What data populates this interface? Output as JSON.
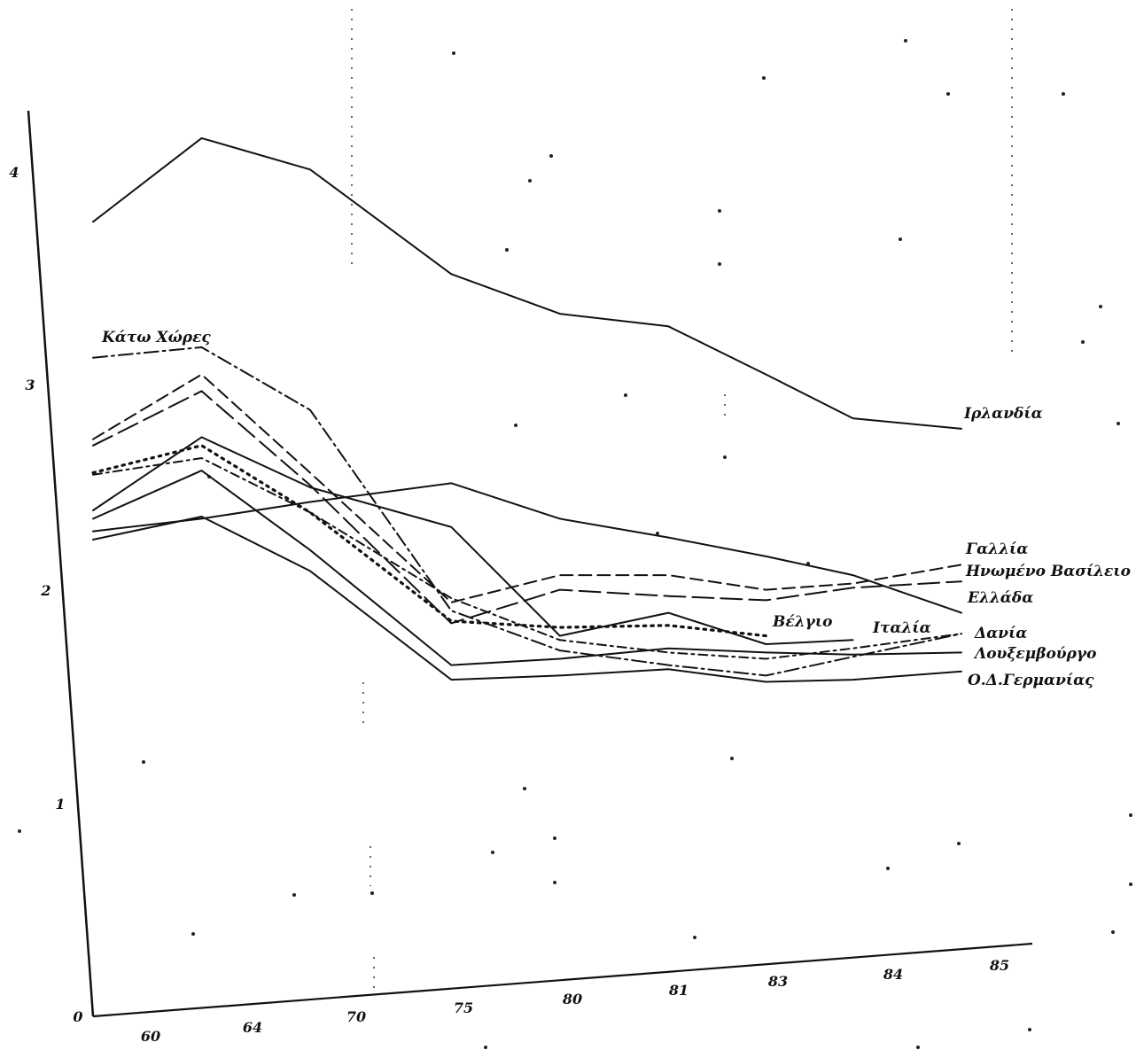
{
  "chart_data": {
    "type": "line",
    "title": "",
    "xlabel": "",
    "ylabel": "",
    "x_tick_labels": [
      "60",
      "64",
      "70",
      "75",
      "80",
      "81",
      "83",
      "84",
      "85"
    ],
    "y_tick_labels": [
      "0",
      "1",
      "2",
      "3",
      "4"
    ],
    "ylim": [
      0,
      4.3
    ],
    "grid": false,
    "series": [
      {
        "name": "Ιρλανδία",
        "style": "solid",
        "points": [
          [
            0,
            3.77
          ],
          [
            1,
            4.17
          ],
          [
            2,
            4.02
          ],
          [
            3.3,
            3.52
          ],
          [
            4.3,
            3.33
          ],
          [
            5.3,
            3.27
          ],
          [
            6.2,
            3.04
          ],
          [
            7,
            2.83
          ],
          [
            8,
            2.78
          ]
        ]
      },
      {
        "name": "Κάτω Χώρες",
        "style": "dashdot",
        "points": [
          [
            0,
            3.12
          ],
          [
            1,
            3.17
          ],
          [
            2,
            2.87
          ],
          [
            3.3,
            1.91
          ],
          [
            4.3,
            1.72
          ],
          [
            5.3,
            1.65
          ],
          [
            6.2,
            1.6
          ],
          [
            7,
            1.69
          ],
          [
            8,
            1.8
          ]
        ]
      },
      {
        "name": "Γαλλία",
        "style": "dashed",
        "points": [
          [
            0,
            2.73
          ],
          [
            1,
            3.04
          ],
          [
            2,
            2.57
          ],
          [
            3.3,
            1.95
          ],
          [
            4.3,
            2.08
          ],
          [
            5.3,
            2.08
          ],
          [
            6.2,
            2.01
          ],
          [
            7,
            2.04
          ],
          [
            8,
            2.13
          ]
        ]
      },
      {
        "name": "Ηνωμένο Βασίλειο",
        "style": "longdash",
        "points": [
          [
            0,
            2.7
          ],
          [
            1,
            2.96
          ],
          [
            2,
            2.51
          ],
          [
            3.3,
            1.85
          ],
          [
            4.3,
            2.01
          ],
          [
            5.3,
            1.98
          ],
          [
            6.2,
            1.96
          ],
          [
            7,
            2.02
          ],
          [
            8,
            2.05
          ]
        ]
      },
      {
        "name": "Ελλάδα",
        "style": "solid",
        "points": [
          [
            0,
            2.29
          ],
          [
            1,
            2.35
          ],
          [
            2,
            2.43
          ],
          [
            3.3,
            2.52
          ],
          [
            4.3,
            2.35
          ],
          [
            5.3,
            2.26
          ],
          [
            6.2,
            2.17
          ],
          [
            7,
            2.08
          ],
          [
            8,
            1.9
          ]
        ]
      },
      {
        "name": "Βέλγιο",
        "style": "dotted",
        "points": [
          [
            0,
            2.57
          ],
          [
            1,
            2.7
          ],
          [
            2,
            2.38
          ],
          [
            3.3,
            1.86
          ],
          [
            4.3,
            1.83
          ],
          [
            5.3,
            1.84
          ],
          [
            6.2,
            1.79
          ]
        ]
      },
      {
        "name": "Ιταλία",
        "style": "solid",
        "points": [
          [
            0,
            2.39
          ],
          [
            1,
            2.74
          ],
          [
            2,
            2.5
          ],
          [
            3.3,
            2.31
          ],
          [
            4.3,
            1.79
          ],
          [
            5.3,
            1.9
          ],
          [
            6.2,
            1.75
          ],
          [
            7,
            1.77
          ]
        ]
      },
      {
        "name": "Δανία",
        "style": "dashdot2",
        "points": [
          [
            0,
            2.56
          ],
          [
            1,
            2.64
          ],
          [
            2,
            2.38
          ],
          [
            3.3,
            1.97
          ],
          [
            4.3,
            1.77
          ],
          [
            5.3,
            1.71
          ],
          [
            6.2,
            1.68
          ],
          [
            7,
            1.73
          ],
          [
            8,
            1.8
          ]
        ]
      },
      {
        "name": "Λουξεμβούργο",
        "style": "solid",
        "points": [
          [
            0,
            2.35
          ],
          [
            1,
            2.58
          ],
          [
            2,
            2.2
          ],
          [
            3.3,
            1.65
          ],
          [
            4.3,
            1.68
          ],
          [
            5.3,
            1.73
          ],
          [
            6.2,
            1.71
          ],
          [
            7,
            1.7
          ],
          [
            8,
            1.71
          ]
        ]
      },
      {
        "name": "Ο.Δ.Γερμανίας",
        "style": "solid",
        "points": [
          [
            0,
            2.25
          ],
          [
            1,
            2.36
          ],
          [
            2,
            2.1
          ],
          [
            3.3,
            1.58
          ],
          [
            4.3,
            1.6
          ],
          [
            5.3,
            1.63
          ],
          [
            6.2,
            1.57
          ],
          [
            7,
            1.58
          ],
          [
            8,
            1.62
          ]
        ]
      }
    ]
  }
}
